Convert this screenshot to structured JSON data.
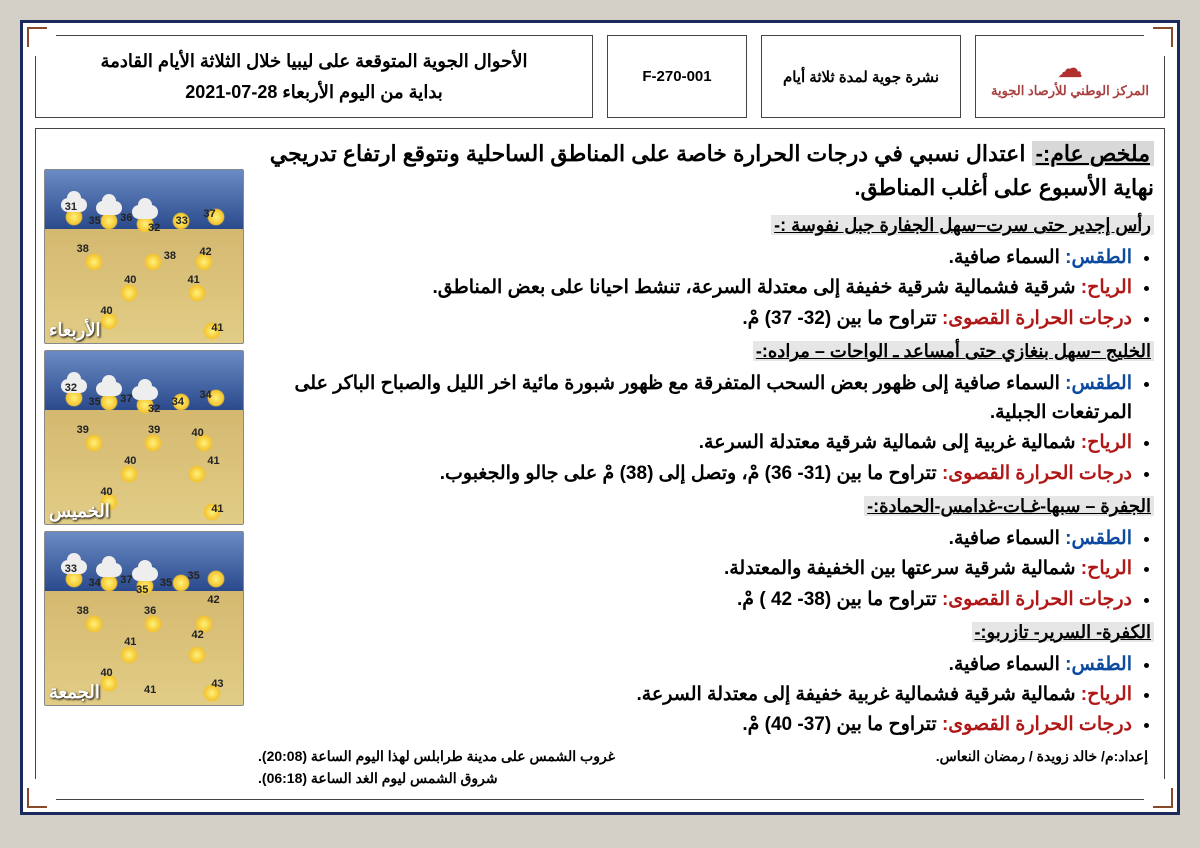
{
  "header": {
    "org_name": "المركز الوطني للأرصاد الجوية",
    "doc_type": "نشرة جوية لمدة ثلاثة أيام",
    "doc_code": "F-270-001",
    "title_line1": "الأحوال الجوية المتوقعة على ليبيا خلال الثلاثة الأيام القادمة",
    "title_line2": "بداية من اليوم الأربعاء 28-07-2021"
  },
  "summary": {
    "label": "ملخص عام:-",
    "text": "اعتدال نسبي في درجات الحرارة خاصة على المناطق الساحلية ونتوقع ارتفاع تدريجي نهاية الأسبوع على أغلب المناطق."
  },
  "regions": [
    {
      "name": "رأس إجدير حتى سرت–سهل الجفارة جبل نفوسة :-",
      "weather": "السماء صافية.",
      "wind": "شرقية فشمالية شرقية خفيفة إلى معتدلة السرعة، تنشط احيانا على بعض المناطق.",
      "temp": "تتراوح ما بين (32- 37) مْ."
    },
    {
      "name": "الخليج –سهل بنغازي حتى أمساعد ـ الواحات – مراده:-",
      "weather": "السماء صافية إلى ظهور بعض السحب المتفرقة مع ظهور شبورة مائية اخر الليل والصباح الباكر على المرتفعات الجبلية.",
      "wind": "شمالية غربية إلى شمالية شرقية معتدلة السرعة.",
      "temp": "تتراوح ما بين (31- 36) مْ، وتصل إلى (38) مْ على جالو والجغبوب."
    },
    {
      "name": "الجفرة – سبها-غـات-غدامس-الحمادة:-",
      "weather": "السماء صافية.",
      "wind": "شمالية شرقية سرعتها بين الخفيفة والمعتدلة.",
      "temp": "تتراوح ما بين (38- 42 ) مْ."
    },
    {
      "name": "الكفرة- السرير- تازربو:-",
      "weather": "السماء صافية.",
      "wind": "شمالية شرقية فشمالية غربية خفيفة إلى معتدلة السرعة.",
      "temp": "تتراوح ما بين (37- 40) مْ."
    }
  ],
  "labels": {
    "weather": "الطقس:",
    "wind": "الرياح:",
    "temp": "درجات الحرارة القصوى:"
  },
  "maps": [
    {
      "day": "الأربعاء",
      "temps": [
        {
          "v": "31",
          "t": "18%",
          "l": "10%"
        },
        {
          "v": "35",
          "t": "26%",
          "l": "22%"
        },
        {
          "v": "36",
          "t": "24%",
          "l": "38%"
        },
        {
          "v": "32",
          "t": "30%",
          "l": "52%"
        },
        {
          "v": "33",
          "t": "26%",
          "l": "66%"
        },
        {
          "v": "37",
          "t": "22%",
          "l": "80%"
        },
        {
          "v": "38",
          "t": "42%",
          "l": "16%"
        },
        {
          "v": "38",
          "t": "46%",
          "l": "60%"
        },
        {
          "v": "42",
          "t": "44%",
          "l": "78%"
        },
        {
          "v": "40",
          "t": "60%",
          "l": "40%"
        },
        {
          "v": "41",
          "t": "60%",
          "l": "72%"
        },
        {
          "v": "40",
          "t": "78%",
          "l": "28%"
        },
        {
          "v": "41",
          "t": "88%",
          "l": "84%"
        }
      ]
    },
    {
      "day": "الخميس",
      "temps": [
        {
          "v": "32",
          "t": "18%",
          "l": "10%"
        },
        {
          "v": "35",
          "t": "26%",
          "l": "22%"
        },
        {
          "v": "37",
          "t": "24%",
          "l": "38%"
        },
        {
          "v": "32",
          "t": "30%",
          "l": "52%"
        },
        {
          "v": "34",
          "t": "26%",
          "l": "64%"
        },
        {
          "v": "34",
          "t": "22%",
          "l": "78%"
        },
        {
          "v": "39",
          "t": "42%",
          "l": "16%"
        },
        {
          "v": "39",
          "t": "42%",
          "l": "52%"
        },
        {
          "v": "40",
          "t": "44%",
          "l": "74%"
        },
        {
          "v": "40",
          "t": "60%",
          "l": "40%"
        },
        {
          "v": "41",
          "t": "60%",
          "l": "82%"
        },
        {
          "v": "40",
          "t": "78%",
          "l": "28%"
        },
        {
          "v": "41",
          "t": "88%",
          "l": "84%"
        }
      ]
    },
    {
      "day": "الجمعة",
      "temps": [
        {
          "v": "33",
          "t": "18%",
          "l": "10%"
        },
        {
          "v": "34",
          "t": "26%",
          "l": "22%"
        },
        {
          "v": "37",
          "t": "24%",
          "l": "38%"
        },
        {
          "v": "35",
          "t": "30%",
          "l": "46%"
        },
        {
          "v": "35",
          "t": "26%",
          "l": "58%"
        },
        {
          "v": "35",
          "t": "22%",
          "l": "72%"
        },
        {
          "v": "38",
          "t": "42%",
          "l": "16%"
        },
        {
          "v": "36",
          "t": "42%",
          "l": "50%"
        },
        {
          "v": "42",
          "t": "36%",
          "l": "82%"
        },
        {
          "v": "41",
          "t": "60%",
          "l": "40%"
        },
        {
          "v": "42",
          "t": "56%",
          "l": "74%"
        },
        {
          "v": "40",
          "t": "78%",
          "l": "28%"
        },
        {
          "v": "41",
          "t": "88%",
          "l": "50%"
        },
        {
          "v": "43",
          "t": "84%",
          "l": "84%"
        }
      ]
    }
  ],
  "footer": {
    "author": "إعداد:م/ خالد زويدة / رمضان النعاس.",
    "sunset": "غروب الشمس على مدينة طرابلس لهذا اليوم الساعة (20:08).",
    "sunrise": "شروق الشمس ليوم الغد الساعة (06:18)."
  },
  "styling": {
    "page_border_color": "#1a2a5c",
    "accent_red": "#b01818",
    "accent_blue": "#0b4aa0",
    "highlight_bg": "#e6e6e6",
    "map_sea": "#2a4a8c",
    "map_land": "#e2cd86"
  }
}
